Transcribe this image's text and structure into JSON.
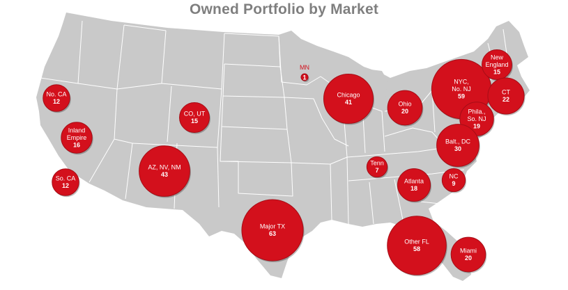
{
  "title": "Owned Portfolio by Market",
  "colors": {
    "land": "#c9c9c9",
    "bubble": "#d3101c",
    "bubble_stroke": "#a50d16",
    "title": "#7f7f7f"
  },
  "markets": [
    {
      "name": "No. CA",
      "value": 12
    },
    {
      "name": "Inland Empire",
      "value": 16
    },
    {
      "name": "So. CA",
      "value": 12
    },
    {
      "name": "CO, UT",
      "value": 15
    },
    {
      "name": "AZ, NV, NM",
      "value": 43
    },
    {
      "name": "Major TX",
      "value": 63
    },
    {
      "name": "MN",
      "value": 1
    },
    {
      "name": "Chicago",
      "value": 41
    },
    {
      "name": "Ohio",
      "value": 20
    },
    {
      "name": "NYC, No. NJ",
      "value": 59
    },
    {
      "name": "New England",
      "value": 15
    },
    {
      "name": "CT",
      "value": 22
    },
    {
      "name": "Phila., So. NJ",
      "value": 19
    },
    {
      "name": "Balt., DC",
      "value": 30
    },
    {
      "name": "Tenn",
      "value": 7
    },
    {
      "name": "Atlanta",
      "value": 18
    },
    {
      "name": "NC",
      "value": 9
    },
    {
      "name": "Other FL",
      "value": 58
    },
    {
      "name": "Miami",
      "value": 20
    }
  ]
}
